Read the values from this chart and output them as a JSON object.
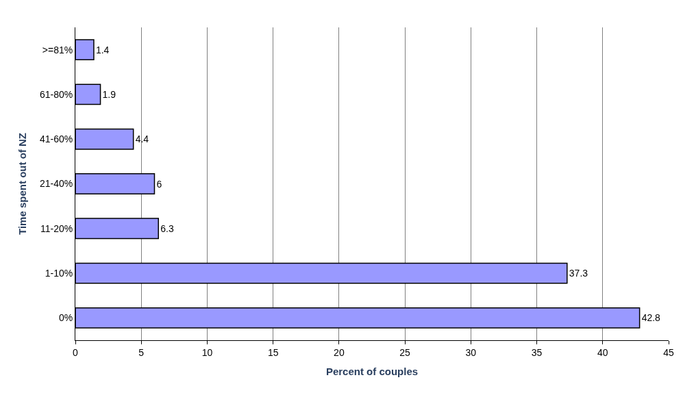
{
  "chart_data": {
    "type": "bar",
    "orientation": "horizontal",
    "xlabel": "Percent of couples",
    "ylabel": "Time spent out of NZ",
    "categories": [
      ">=81%",
      "61-80%",
      "41-60%",
      "21-40%",
      "11-20%",
      "1-10%",
      "0%"
    ],
    "values": [
      1.4,
      1.9,
      4.4,
      6,
      6.3,
      37.3,
      42.8
    ],
    "color": "#9999ff",
    "xlim": [
      0,
      45
    ],
    "xticks": [
      0,
      5,
      10,
      15,
      20,
      25,
      30,
      35,
      40,
      45
    ],
    "grid": "x",
    "data_labels": true
  }
}
